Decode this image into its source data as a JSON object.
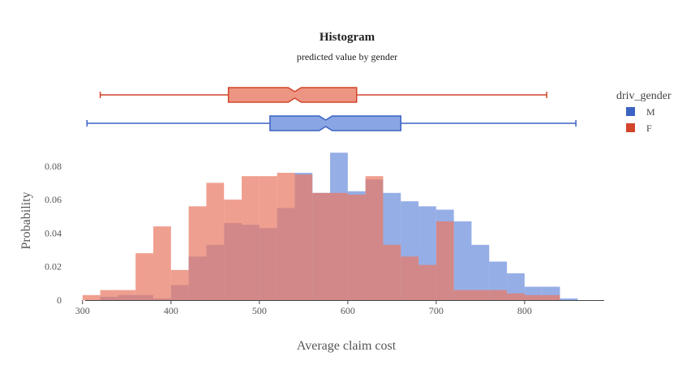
{
  "chart_data": {
    "type": "bar",
    "title": "Histogram",
    "subtitle": "predicted value by gender",
    "xlabel": "Average claim cost",
    "ylabel": "Probability",
    "xlim": [
      280,
      890
    ],
    "ylim": [
      0,
      0.092
    ],
    "xticks": [
      300,
      400,
      500,
      600,
      700,
      800
    ],
    "yticks": [
      0,
      0.02,
      0.04,
      0.06,
      0.08
    ],
    "ytick_labels": [
      "0",
      "0.02",
      "0.04",
      "0.06",
      "0.08"
    ],
    "bin_edges": [
      300,
      320,
      340,
      360,
      380,
      400,
      420,
      440,
      460,
      480,
      500,
      520,
      540,
      560,
      580,
      600,
      620,
      640,
      660,
      680,
      700,
      720,
      740,
      760,
      780,
      800,
      820,
      840,
      860
    ],
    "legend": {
      "title": "driv_gender",
      "position": "right"
    },
    "series": [
      {
        "name": "M",
        "color": "#6d8fdc",
        "legend_color": "#3b63c4",
        "values": [
          0,
          0.002,
          0.003,
          0.003,
          0.001,
          0.009,
          0.026,
          0.033,
          0.046,
          0.045,
          0.043,
          0.055,
          0.076,
          0.064,
          0.088,
          0.065,
          0.072,
          0.064,
          0.059,
          0.056,
          0.054,
          0.047,
          0.033,
          0.023,
          0.016,
          0.008,
          0.008,
          0.001
        ],
        "box": {
          "min": 305,
          "q1": 512,
          "median": 575,
          "q3": 660,
          "max": 858
        }
      },
      {
        "name": "F",
        "color": "#e97a64",
        "legend_color": "#d2452b",
        "values": [
          0.003,
          0.006,
          0.006,
          0.028,
          0.044,
          0.018,
          0.056,
          0.07,
          0.06,
          0.074,
          0.074,
          0.076,
          0.075,
          0.064,
          0.064,
          0.063,
          0.074,
          0.033,
          0.026,
          0.021,
          0.047,
          0.006,
          0.006,
          0.006,
          0.004,
          0.003,
          0.003,
          0.0
        ],
        "box": {
          "min": 320,
          "q1": 465,
          "median": 540,
          "q3": 610,
          "max": 825
        }
      }
    ]
  }
}
